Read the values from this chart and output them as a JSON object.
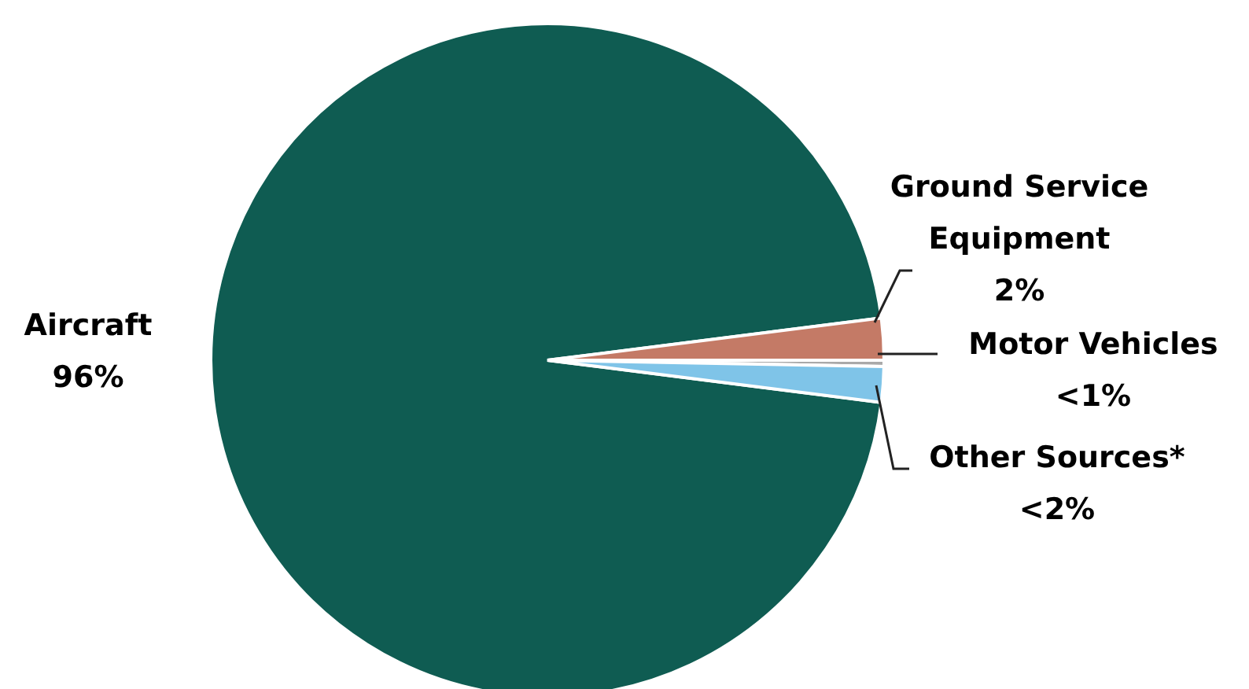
{
  "chart_data": {
    "type": "pie",
    "categories": [
      "Aircraft",
      "Ground Service Equipment",
      "Motor Vehicles",
      "Other Sources*"
    ],
    "values": [
      96,
      2,
      0.3,
      1.7
    ],
    "value_labels": [
      "96%",
      "2%",
      "<1%",
      "<2%"
    ],
    "colors": [
      "#0f5c52",
      "#c47a66",
      "#a9a9a9",
      "#7fc4e8"
    ]
  }
}
